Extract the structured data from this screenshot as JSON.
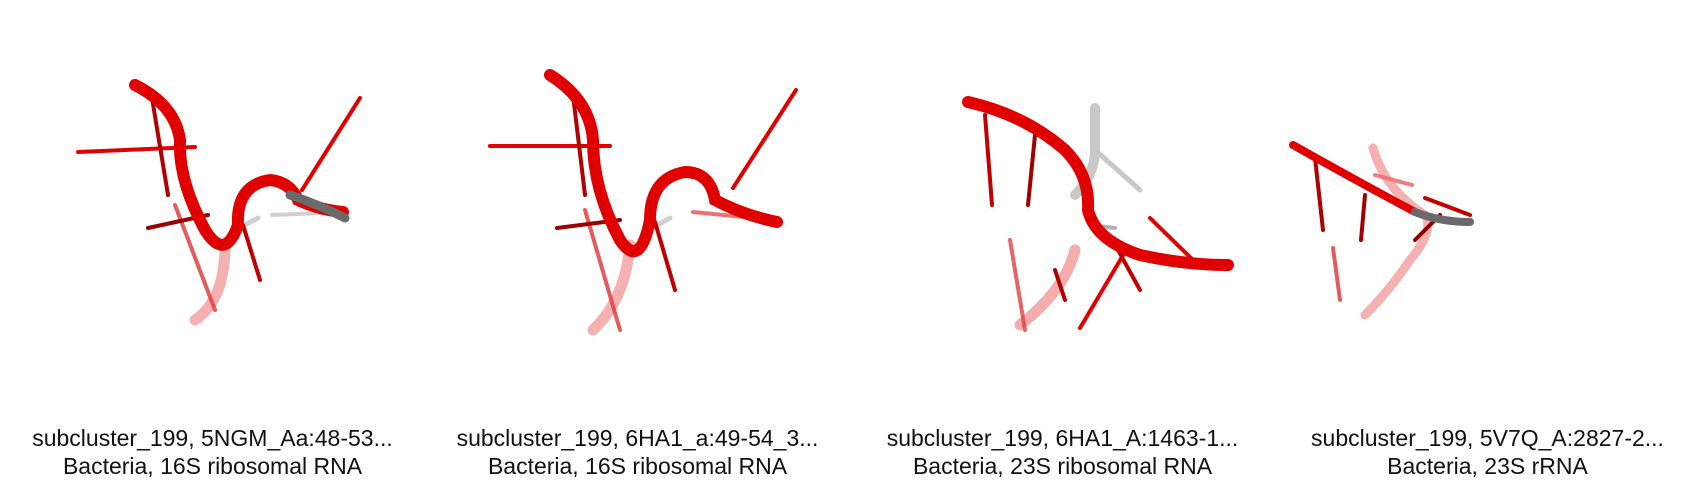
{
  "panels": [
    {
      "title": "subcluster_199, 5NGM_Aa:48-53...",
      "subtitle": "Bacteria, 16S ribosomal RNA"
    },
    {
      "title": "subcluster_199, 6HA1_a:49-54_3...",
      "subtitle": "Bacteria, 16S ribosomal RNA"
    },
    {
      "title": "subcluster_199, 6HA1_A:1463-1...",
      "subtitle": "Bacteria, 23S ribosomal RNA"
    },
    {
      "title": "subcluster_199, 5V7Q_A:2827-2...",
      "subtitle": "Bacteria, 23S rRNA"
    }
  ],
  "colors": {
    "backbone": "#e00000",
    "base_dark": "#b00000",
    "backbone_faded": "#f08a8a",
    "grey": "#6a6a6a",
    "grey_light": "#c6c6c6"
  }
}
